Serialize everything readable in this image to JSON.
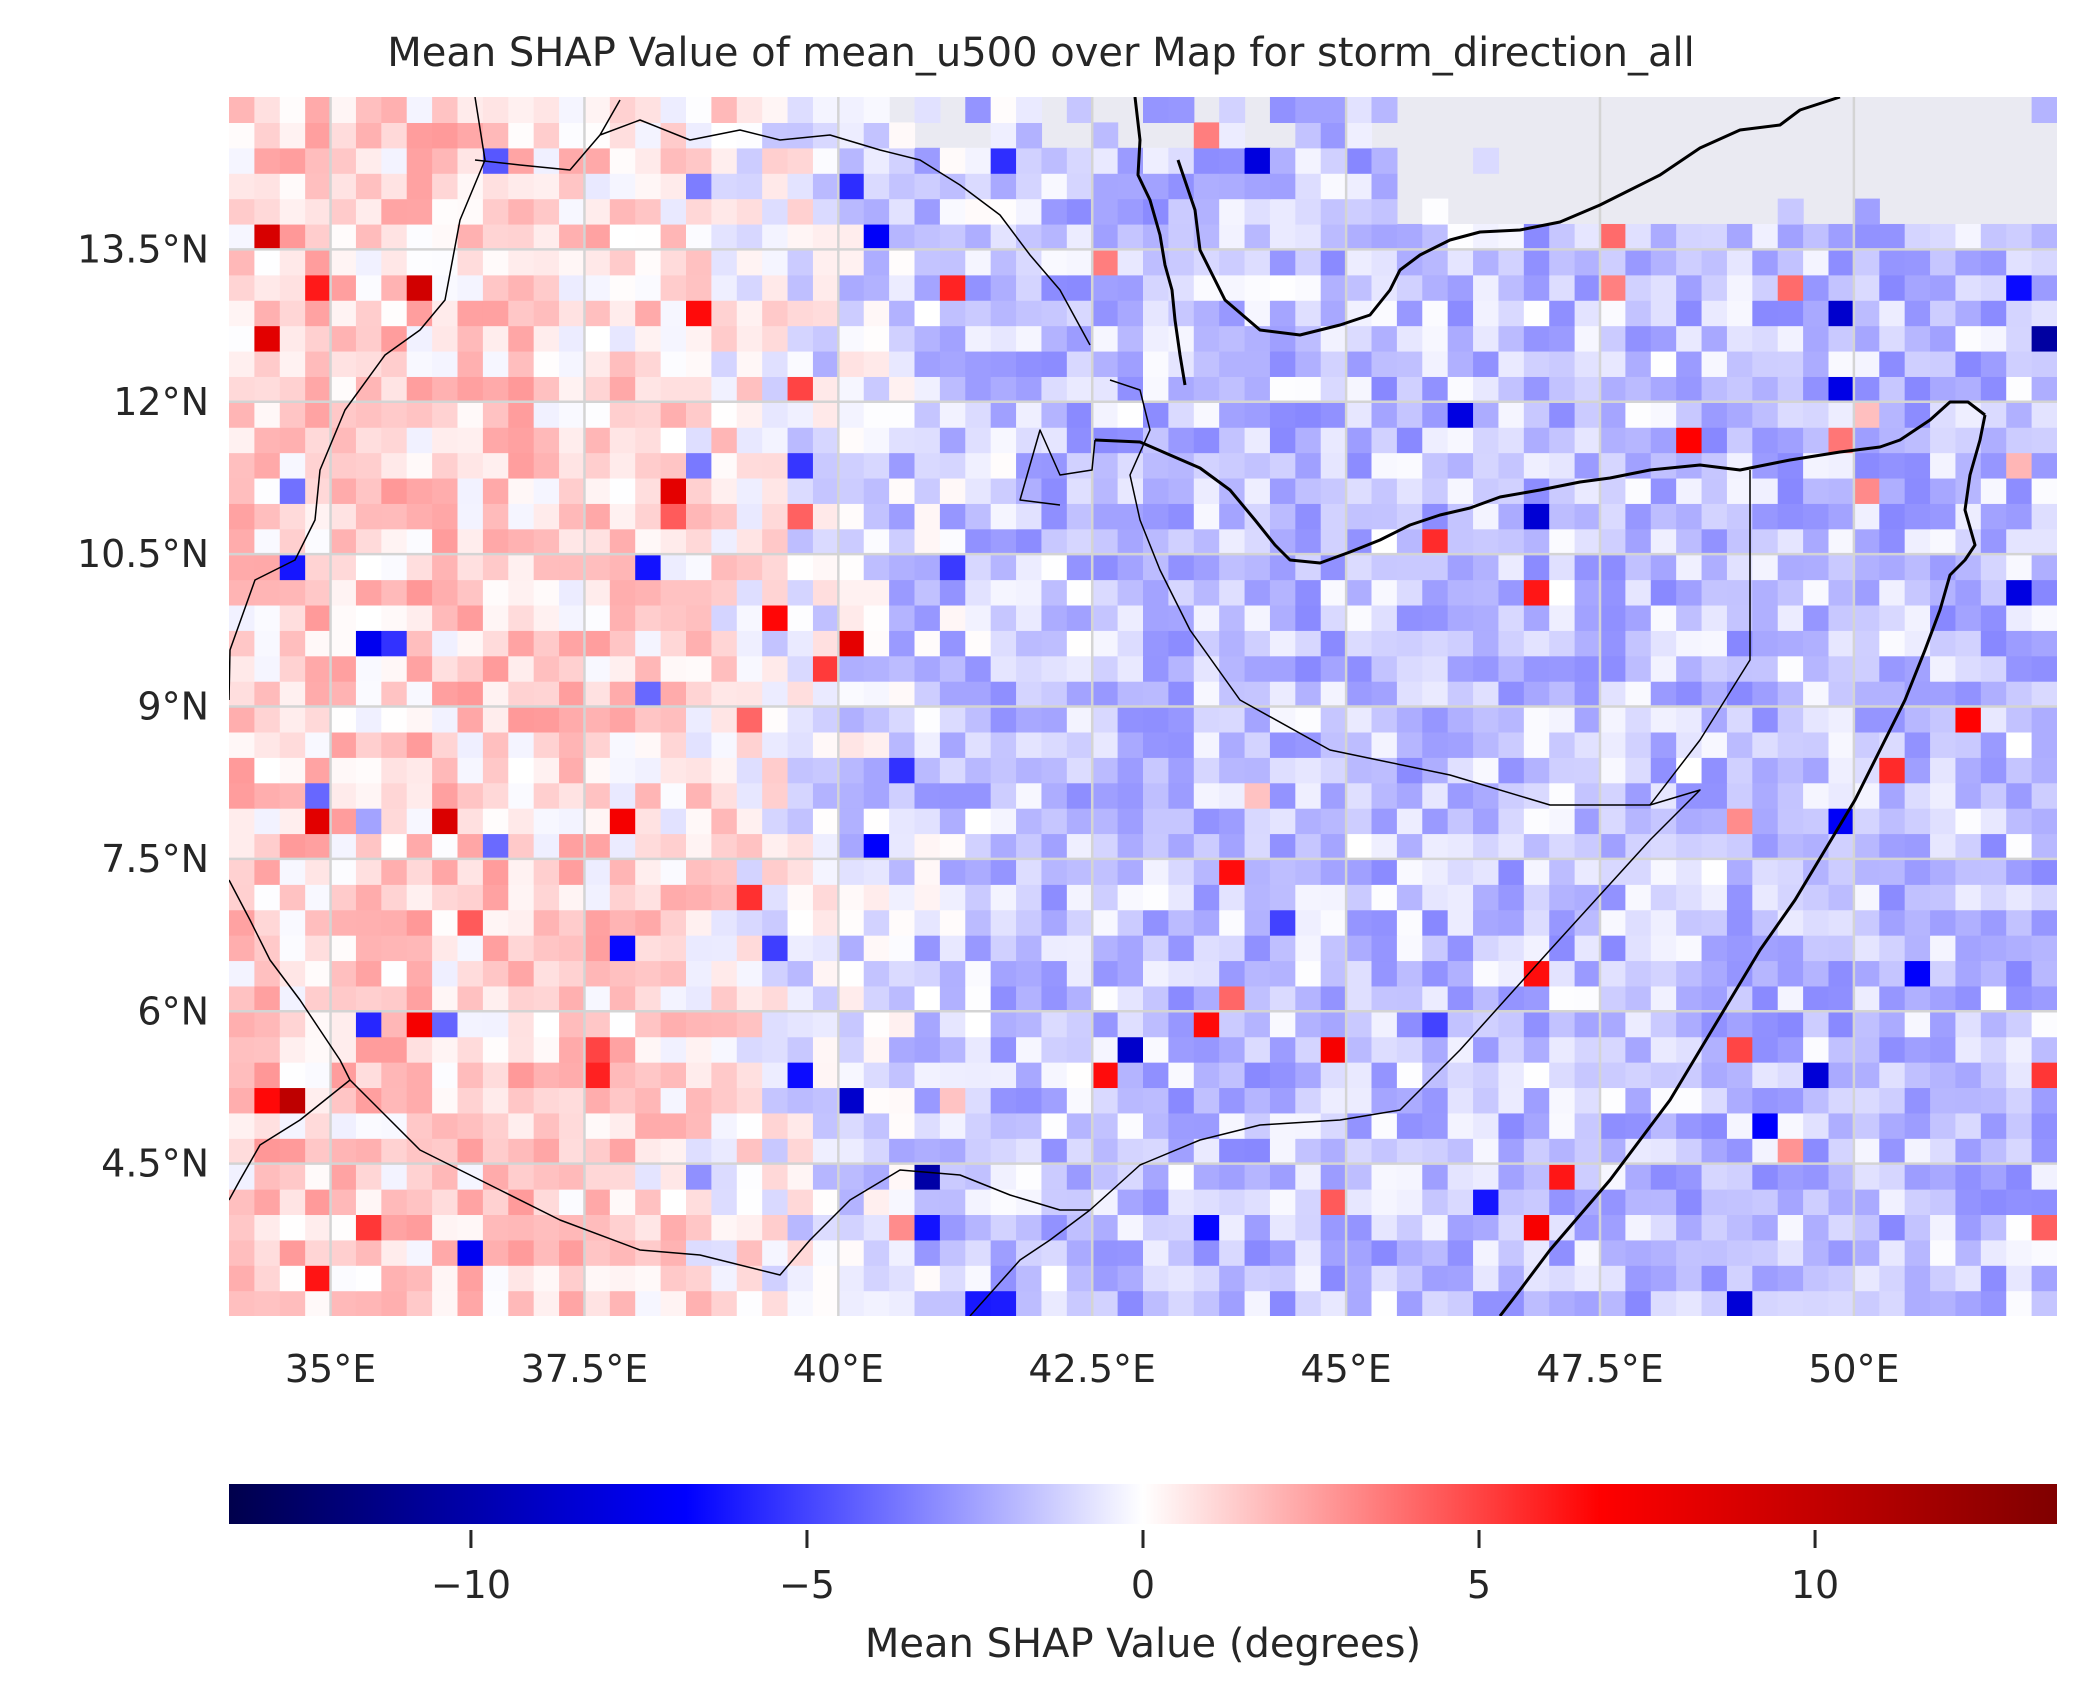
{
  "chart_data": {
    "type": "heatmap",
    "title": "Mean SHAP Value of mean_u500 over Map for storm_direction_all",
    "x_tick_labels": [
      "35°E",
      "37.5°E",
      "40°E",
      "42.5°E",
      "45°E",
      "47.5°E",
      "50°E"
    ],
    "x_tick_values": [
      35,
      37.5,
      40,
      42.5,
      45,
      47.5,
      50
    ],
    "y_tick_labels": [
      "13.5°N",
      "12°N",
      "10.5°N",
      "9°N",
      "7.5°N",
      "6°N",
      "4.5°N"
    ],
    "y_tick_values": [
      13.5,
      12,
      10.5,
      9,
      7.5,
      6,
      4.5
    ],
    "x_range": [
      34.0,
      52.0
    ],
    "y_range": [
      3.0,
      15.0
    ],
    "grid": true,
    "cell_size_degrees": 0.25,
    "colormap": "seismic",
    "colorbar": {
      "label": "Mean SHAP Value (degrees)",
      "range": [
        -13.6,
        13.6
      ],
      "tick_labels": [
        "−10",
        "−5",
        "0",
        "5",
        "10"
      ],
      "tick_values": [
        -10,
        -5,
        0,
        5,
        10
      ],
      "orientation": "horizontal",
      "placement": "bottom"
    },
    "field_pattern": {
      "west_region_mean": 1.2,
      "east_region_mean": -1.6,
      "transition_longitude": 39.5,
      "ocean_no_data_color": "#eaeaf2"
    },
    "colors": {
      "no_data": "#eaeaf2",
      "grid": "#d4d4d4",
      "coastline": "#000000",
      "cmap_min": "#00004c",
      "cmap_neg": "#0000ff",
      "cmap_zero": "#ffffff",
      "cmap_pos": "#ff0000",
      "cmap_max": "#800000"
    }
  }
}
